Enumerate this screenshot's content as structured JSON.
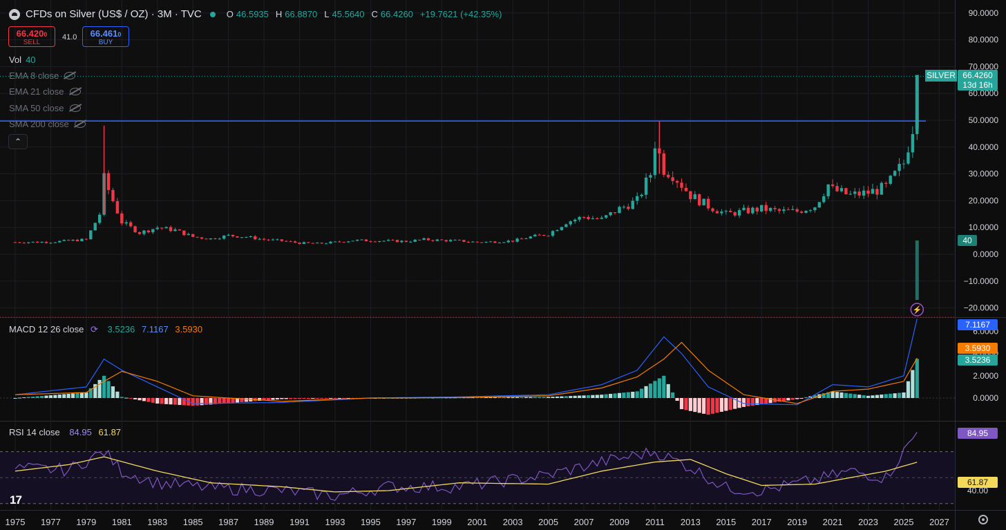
{
  "header": {
    "symbol_title": "CFDs on Silver (US$ / OZ) · 3M · TVC",
    "open_label": "O",
    "open": "46.5935",
    "high_label": "H",
    "high": "66.8870",
    "low_label": "L",
    "low": "45.5640",
    "close_label": "C",
    "close": "66.4260",
    "change": "+19.7621 (+42.35%)"
  },
  "trade": {
    "sell_price": "66.420",
    "sell_price_small": "0",
    "sell_label": "SELL",
    "spread": "41.0",
    "buy_price": "66.461",
    "buy_price_small": "0",
    "buy_label": "BUY"
  },
  "volume": {
    "label": "Vol",
    "value": "40"
  },
  "indicators": [
    {
      "label": "EMA 8 close"
    },
    {
      "label": "EMA 21 close"
    },
    {
      "label": "SMA 50 close"
    },
    {
      "label": "SMA 200 close"
    }
  ],
  "collapse_symbol": "⌃",
  "macd": {
    "label": "MACD 12 26 close",
    "histogram": "3.5236",
    "macd": "7.1167",
    "signal": "3.5930"
  },
  "rsi": {
    "label": "RSI 14 close",
    "rsi": "84.95",
    "ma": "61.87"
  },
  "price_tag": {
    "ticker": "SILVER",
    "price": "66.4260",
    "countdown": "13d 16h"
  },
  "volume_tag": "40",
  "macd_tags": {
    "macd": "7.1167",
    "signal": "3.5930",
    "hist": "3.5236"
  },
  "rsi_tags": {
    "rsi": "84.95",
    "ma": "61.87"
  },
  "axes": {
    "price_ticks": [
      "90.0000",
      "80.0000",
      "70.0000",
      "60.0000",
      "50.0000",
      "40.0000",
      "30.0000",
      "20.0000",
      "10.0000",
      "0.0000",
      "−10.0000",
      "−20.0000"
    ],
    "macd_ticks": [
      "6.0000",
      "4.0000",
      "2.0000",
      "0.0000"
    ],
    "rsi_ticks": [
      "40.00"
    ],
    "years": [
      "1975",
      "1977",
      "1979",
      "1981",
      "1983",
      "1985",
      "1987",
      "1989",
      "1991",
      "1993",
      "1995",
      "1997",
      "1999",
      "2001",
      "2003",
      "2005",
      "2007",
      "2009",
      "2011",
      "2013",
      "2015",
      "2017",
      "2019",
      "2021",
      "2023",
      "2025",
      "2027"
    ]
  },
  "colors": {
    "up": "#26a69a",
    "down": "#f23645",
    "macd": "#2962ff",
    "signal": "#f57c00",
    "rsi": "#7e57c2",
    "rsi_ma": "#f2d95c",
    "hline": "#2962ff"
  },
  "icons": {
    "logo": "tradingview-logo",
    "settings": "gear-icon",
    "alert": "lightning-alert-icon",
    "symbol": "silver-symbol-icon"
  },
  "chart_data": [
    {
      "type": "candlestick",
      "title": "CFDs on Silver (US$ / OZ) · 3M · TVC",
      "x": [
        1975,
        1977,
        1979,
        1979.75,
        1980,
        1980.5,
        1981,
        1982,
        1983,
        1984,
        1985,
        1986,
        1987,
        1988,
        1989,
        1990,
        1991,
        1992,
        1993,
        1994,
        1995,
        1996,
        1997,
        1998,
        1999,
        2000,
        2001,
        2002,
        2003,
        2004,
        2005,
        2006,
        2007,
        2008,
        2009,
        2010,
        2010.75,
        2011,
        2011.5,
        2012,
        2013,
        2014,
        2015,
        2016,
        2017,
        2018,
        2019,
        2020,
        2020.75,
        2021,
        2022,
        2023,
        2024,
        2025,
        2025.5,
        2025.75
      ],
      "values": [
        4.5,
        4.6,
        5.5,
        15,
        28,
        20,
        12,
        8,
        10,
        9,
        6.5,
        5.8,
        7,
        6.5,
        5.5,
        5,
        4.2,
        4,
        4.5,
        5.2,
        5.1,
        5,
        4.8,
        5.5,
        5.2,
        5,
        4.5,
        4.7,
        5,
        6.5,
        7.5,
        12,
        14,
        13,
        17,
        20,
        30,
        42,
        32,
        30,
        22,
        18,
        15,
        16,
        17,
        16,
        16,
        18,
        26,
        24,
        22,
        23,
        25,
        34,
        48,
        66.426
      ],
      "ylim": [
        -25,
        92
      ],
      "horizontal_line": 49.7
    },
    {
      "type": "line",
      "title": "MACD 12 26 close",
      "series": [
        {
          "name": "MACD",
          "x": [
            1975,
            1979,
            1980,
            1981,
            1983,
            1985,
            1990,
            1995,
            2000,
            2005,
            2008,
            2010,
            2011.5,
            2012.5,
            2014,
            2016,
            2019,
            2021,
            2023,
            2025,
            2025.75
          ],
          "values": [
            0.3,
            1,
            3.5,
            2.5,
            1,
            -0.5,
            -0.4,
            0,
            0.1,
            0.3,
            1.2,
            2.5,
            5.5,
            4,
            1,
            -0.5,
            -0.6,
            1.2,
            1,
            2,
            7.1167
          ]
        },
        {
          "name": "Signal",
          "x": [
            1975,
            1979,
            1980,
            1981,
            1983,
            1985,
            1990,
            1995,
            2000,
            2005,
            2008,
            2010,
            2011.5,
            2012.5,
            2014,
            2016,
            2019,
            2021,
            2023,
            2025,
            2025.75
          ],
          "values": [
            0.3,
            0.5,
            1.5,
            2.4,
            1.5,
            0.2,
            -0.3,
            0,
            0.05,
            0.2,
            0.9,
            1.9,
            3.5,
            5,
            2.5,
            0.3,
            -0.5,
            0.6,
            0.8,
            1.5,
            3.593
          ]
        },
        {
          "name": "Histogram",
          "x": [
            1979.5,
            1980,
            1981,
            1982,
            1984,
            2011,
            2012,
            2014,
            2016,
            2025.5,
            2025.75
          ],
          "values": [
            1,
            2,
            0.5,
            -1.2,
            -0.6,
            2,
            0.8,
            -2,
            -0.6,
            2,
            3.5236
          ]
        }
      ],
      "ylim": [
        -1,
        7.5
      ]
    },
    {
      "type": "line",
      "title": "RSI 14 close",
      "series": [
        {
          "name": "RSI",
          "x": [
            1975,
            1978,
            1980,
            1981,
            1983,
            1986,
            1990,
            1993,
            1996,
            2000,
            2005,
            2008,
            2011,
            2013,
            2015,
            2017,
            2020,
            2022,
            2024,
            2025.75
          ],
          "values": [
            57,
            56,
            70,
            55,
            46,
            42,
            40,
            36,
            43,
            43,
            52,
            62,
            70,
            58,
            42,
            40,
            48,
            55,
            50,
            84.95
          ]
        },
        {
          "name": "RSI MA",
          "x": [
            1975,
            1978,
            1980,
            1983,
            1986,
            1990,
            1993,
            1996,
            2000,
            2005,
            2008,
            2011,
            2013,
            2015,
            2017,
            2020,
            2022,
            2024,
            2025.75
          ],
          "values": [
            55,
            60,
            66,
            55,
            46,
            43,
            39,
            40,
            46,
            45,
            55,
            62,
            64,
            53,
            44,
            45,
            50,
            55,
            61.87
          ]
        }
      ],
      "ylim": [
        30,
        90
      ]
    }
  ]
}
